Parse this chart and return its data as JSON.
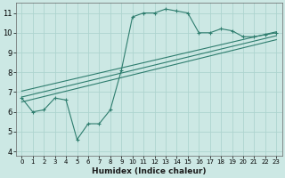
{
  "xlabel": "Humidex (Indice chaleur)",
  "ylabel": "",
  "bg_color": "#cce8e4",
  "line_color": "#2e7d6e",
  "grid_color": "#aed4cf",
  "xlim": [
    -0.5,
    23.5
  ],
  "ylim": [
    3.8,
    11.5
  ],
  "xticks": [
    0,
    1,
    2,
    3,
    4,
    5,
    6,
    7,
    8,
    9,
    10,
    11,
    12,
    13,
    14,
    15,
    16,
    17,
    18,
    19,
    20,
    21,
    22,
    23
  ],
  "yticks": [
    4,
    5,
    6,
    7,
    8,
    9,
    10,
    11
  ],
  "line1_x": [
    0,
    1,
    2,
    3,
    4,
    5,
    6,
    7,
    8,
    9,
    10,
    11,
    12,
    13,
    14,
    15,
    16,
    17,
    18,
    19,
    20,
    21,
    22,
    23
  ],
  "line1_y": [
    6.7,
    6.0,
    6.1,
    6.7,
    6.6,
    4.6,
    5.4,
    5.4,
    6.1,
    8.1,
    10.8,
    11.0,
    11.0,
    11.2,
    11.1,
    11.0,
    10.0,
    10.0,
    10.2,
    10.1,
    9.8,
    9.8,
    9.9,
    10.0
  ],
  "line2_x": [
    0,
    23
  ],
  "line2_y": [
    7.05,
    10.05
  ],
  "line3_x": [
    0,
    23
  ],
  "line3_y": [
    6.75,
    9.85
  ],
  "line4_x": [
    0,
    23
  ],
  "line4_y": [
    6.5,
    9.65
  ]
}
